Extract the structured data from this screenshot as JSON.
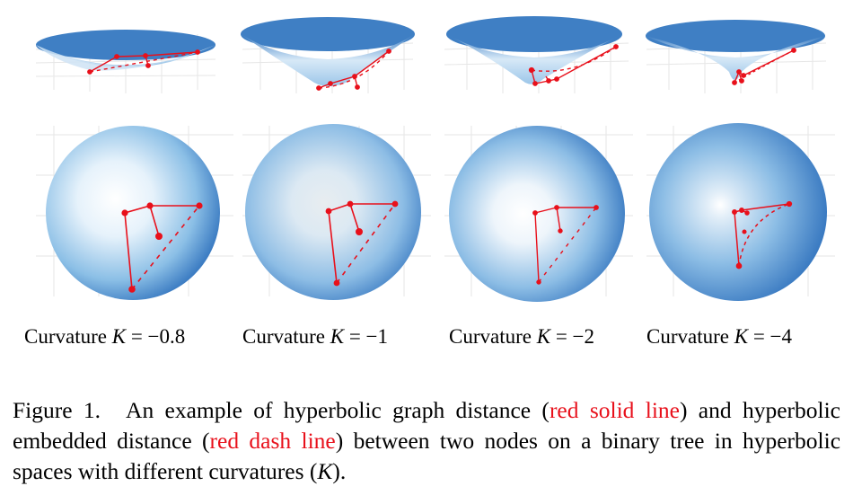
{
  "panels": [
    {
      "label_prefix": "Curvature ",
      "label_var": "K",
      "label_eq": " = −0.8"
    },
    {
      "label_prefix": "Curvature ",
      "label_var": "K",
      "label_eq": " = −1"
    },
    {
      "label_prefix": "Curvature ",
      "label_var": "K",
      "label_eq": " = −2"
    },
    {
      "label_prefix": "Curvature ",
      "label_var": "K",
      "label_eq": " = −4"
    }
  ],
  "caption": {
    "label": "Figure 1.",
    "text_1": "An example of hyperbolic graph distance (",
    "red_1": "red solid line",
    "text_2": ") and hyperbolic embedded distance (",
    "red_2": "red dash line",
    "text_3": ") between two nodes on a binary tree in hyperbolic spaces with different curvatures (",
    "math_k": "K",
    "text_4": ")."
  },
  "colors": {
    "surface_dark": "#3f7fc4",
    "surface_light": "#ffffff",
    "path_red": "#e8101b"
  }
}
